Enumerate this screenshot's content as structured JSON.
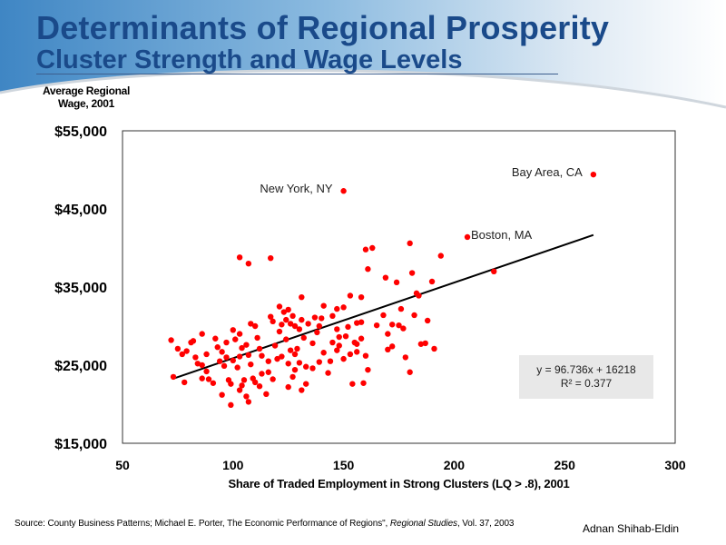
{
  "header": {
    "title": "Determinants of Regional Prosperity",
    "subtitle": "Cluster Strength and Wage Levels"
  },
  "colors": {
    "title": "#1a4a8a",
    "header_gradient_start": "#3f86c4",
    "header_gradient_end": "#ffffff",
    "points": "#ff0000",
    "trendline": "#000000",
    "equation_box": "#e8e8e8"
  },
  "chart_data": {
    "type": "scatter",
    "title": "Cluster Strength and Wage Levels",
    "ylabel_lines": [
      "Average Regional",
      "Wage, 2001"
    ],
    "xlabel": "Share of Traded Employment in Strong Clusters (LQ > .8), 2001",
    "xlim": [
      50,
      300
    ],
    "ylim": [
      15000,
      55000
    ],
    "xticks": [
      50,
      100,
      150,
      200,
      250,
      300
    ],
    "xtick_labels": [
      "50",
      "100",
      "150",
      "200",
      "250",
      "300"
    ],
    "yticks": [
      15000,
      25000,
      35000,
      45000,
      55000
    ],
    "ytick_labels": [
      "$15,000",
      "$25,000",
      "$35,000",
      "$45,000",
      "$55,000"
    ],
    "grid": false,
    "trendline": {
      "slope": 96.736,
      "intercept": 16218,
      "x_range": [
        73,
        263
      ],
      "equation_text": "y = 96.736x + 16218",
      "r2_text": "R² = 0.377"
    },
    "annotations": [
      {
        "label": "Bay Area,  CA",
        "x": 263,
        "y": 49400
      },
      {
        "label": "New York, NY",
        "x": 150,
        "y": 47300
      },
      {
        "label": "Boston, MA",
        "x": 206,
        "y": 41400
      }
    ],
    "points": [
      [
        263,
        49400
      ],
      [
        150,
        47300
      ],
      [
        206,
        41400
      ],
      [
        103,
        38800
      ],
      [
        107,
        38000
      ],
      [
        117,
        38700
      ],
      [
        163,
        40000
      ],
      [
        160,
        39800
      ],
      [
        180,
        40600
      ],
      [
        194,
        39000
      ],
      [
        161,
        37300
      ],
      [
        169,
        36200
      ],
      [
        181,
        36800
      ],
      [
        190,
        35700
      ],
      [
        218,
        37000
      ],
      [
        153,
        33900
      ],
      [
        158,
        33700
      ],
      [
        184,
        33900
      ],
      [
        174,
        35600
      ],
      [
        183,
        34200
      ],
      [
        72,
        28200
      ],
      [
        73,
        23500
      ],
      [
        75,
        27100
      ],
      [
        77,
        26400
      ],
      [
        78,
        22800
      ],
      [
        79,
        26800
      ],
      [
        81,
        27900
      ],
      [
        82,
        28100
      ],
      [
        83,
        26000
      ],
      [
        86,
        29000
      ],
      [
        84,
        25200
      ],
      [
        86,
        25000
      ],
      [
        88,
        26400
      ],
      [
        88,
        24200
      ],
      [
        89,
        23200
      ],
      [
        91,
        22700
      ],
      [
        86,
        23300
      ],
      [
        92,
        28400
      ],
      [
        93,
        27300
      ],
      [
        94,
        25500
      ],
      [
        96,
        24900
      ],
      [
        97,
        26000
      ],
      [
        98,
        23100
      ],
      [
        99,
        22600
      ],
      [
        95,
        21200
      ],
      [
        99,
        19900
      ],
      [
        95,
        26700
      ],
      [
        97,
        27900
      ],
      [
        100,
        29500
      ],
      [
        103,
        29000
      ],
      [
        101,
        28300
      ],
      [
        104,
        27200
      ],
      [
        103,
        26100
      ],
      [
        100,
        25600
      ],
      [
        102,
        24700
      ],
      [
        105,
        23100
      ],
      [
        104,
        22400
      ],
      [
        103,
        21800
      ],
      [
        106,
        21000
      ],
      [
        107,
        20300
      ],
      [
        109,
        23300
      ],
      [
        110,
        22800
      ],
      [
        112,
        22300
      ],
      [
        113,
        23900
      ],
      [
        108,
        25100
      ],
      [
        107,
        26300
      ],
      [
        106,
        27600
      ],
      [
        108,
        30300
      ],
      [
        110,
        30000
      ],
      [
        111,
        28500
      ],
      [
        112,
        27100
      ],
      [
        113,
        26200
      ],
      [
        116,
        25500
      ],
      [
        116,
        24100
      ],
      [
        118,
        23200
      ],
      [
        115,
        21300
      ],
      [
        120,
        25800
      ],
      [
        119,
        27500
      ],
      [
        122,
        26100
      ],
      [
        125,
        25200
      ],
      [
        126,
        26900
      ],
      [
        124,
        28300
      ],
      [
        121,
        29300
      ],
      [
        118,
        30600
      ],
      [
        117,
        31200
      ],
      [
        121,
        32500
      ],
      [
        123,
        31800
      ],
      [
        125,
        32100
      ],
      [
        126,
        30300
      ],
      [
        122,
        30200
      ],
      [
        124,
        30800
      ],
      [
        127,
        31300
      ],
      [
        128,
        30000
      ],
      [
        130,
        29600
      ],
      [
        131,
        30800
      ],
      [
        131,
        33700
      ],
      [
        134,
        30300
      ],
      [
        137,
        31100
      ],
      [
        139,
        30000
      ],
      [
        141,
        32600
      ],
      [
        140,
        31000
      ],
      [
        138,
        29200
      ],
      [
        136,
        27800
      ],
      [
        132,
        28500
      ],
      [
        129,
        27100
      ],
      [
        128,
        26400
      ],
      [
        130,
        25300
      ],
      [
        133,
        24800
      ],
      [
        128,
        24400
      ],
      [
        127,
        23500
      ],
      [
        125,
        22200
      ],
      [
        131,
        21800
      ],
      [
        133,
        22600
      ],
      [
        136,
        24600
      ],
      [
        139,
        25400
      ],
      [
        141,
        26600
      ],
      [
        143,
        24000
      ],
      [
        144,
        25500
      ],
      [
        145,
        27900
      ],
      [
        147,
        26900
      ],
      [
        148,
        28600
      ],
      [
        147,
        29600
      ],
      [
        145,
        31300
      ],
      [
        147,
        32200
      ],
      [
        150,
        32400
      ],
      [
        152,
        29900
      ],
      [
        155,
        27900
      ],
      [
        156,
        30400
      ],
      [
        156,
        27700
      ],
      [
        158,
        28400
      ],
      [
        156,
        26700
      ],
      [
        160,
        26200
      ],
      [
        161,
        24400
      ],
      [
        159,
        22700
      ],
      [
        154,
        22600
      ],
      [
        150,
        25800
      ],
      [
        148,
        27500
      ],
      [
        151,
        28700
      ],
      [
        153,
        26400
      ],
      [
        158,
        30500
      ],
      [
        165,
        30100
      ],
      [
        170,
        29000
      ],
      [
        172,
        30200
      ],
      [
        168,
        31400
      ],
      [
        176,
        32200
      ],
      [
        175,
        30100
      ],
      [
        177,
        29700
      ],
      [
        172,
        27400
      ],
      [
        170,
        27000
      ],
      [
        178,
        26000
      ],
      [
        180,
        24100
      ],
      [
        187,
        27800
      ],
      [
        188,
        30700
      ],
      [
        182,
        31400
      ],
      [
        185,
        27700
      ],
      [
        191,
        27100
      ]
    ]
  },
  "footer": {
    "source_prefix": "Source: County Business Patterns; Michael E. Porter, The Economic Performance of Regions\", ",
    "source_journal": "Regional Studies",
    "source_suffix": ", Vol. 37, 2003",
    "author": "Adnan Shihab-Eldin"
  }
}
